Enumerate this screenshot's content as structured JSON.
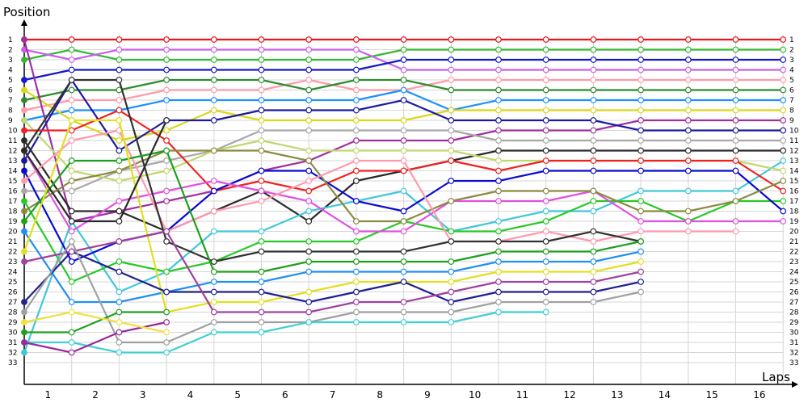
{
  "chart_data": {
    "type": "line",
    "title": "",
    "ylabel": "Position",
    "xlabel": "Laps",
    "x": [
      0,
      1,
      2,
      3,
      4,
      5,
      6,
      7,
      8,
      9,
      10,
      11,
      12,
      13,
      14,
      15,
      16
    ],
    "x_tick_labels": [
      "1",
      "2",
      "3",
      "4",
      "5",
      "6",
      "7",
      "8",
      "9",
      "10",
      "11",
      "12",
      "13",
      "14",
      "15",
      "16"
    ],
    "y_tick_labels": [
      "1",
      "2",
      "3",
      "4",
      "5",
      "6",
      "7",
      "8",
      "9",
      "10",
      "11",
      "12",
      "13",
      "14",
      "15",
      "16",
      "17",
      "18",
      "19",
      "20",
      "21",
      "22",
      "23",
      "24",
      "25",
      "26",
      "27",
      "28",
      "29",
      "30",
      "31",
      "32",
      "33"
    ],
    "ylim": [
      1,
      33
    ],
    "y_inverted": true,
    "grid": true,
    "series": [
      {
        "color": "#e8141e",
        "values": [
          1,
          1,
          1,
          1,
          1,
          1,
          1,
          1,
          1,
          1,
          1,
          1,
          1,
          1,
          1,
          1,
          1
        ]
      },
      {
        "color": "#33b833",
        "values": [
          3,
          2,
          3,
          3,
          3,
          3,
          3,
          3,
          2,
          2,
          2,
          2,
          2,
          2,
          2,
          2,
          2
        ]
      },
      {
        "color": "#c860e8",
        "values": [
          2,
          3,
          2,
          2,
          2,
          2,
          2,
          2,
          4,
          4,
          4,
          4,
          4,
          4,
          4,
          4,
          4
        ]
      },
      {
        "color": "#1818cc",
        "values": [
          5,
          4,
          4,
          4,
          4,
          4,
          4,
          4,
          3,
          3,
          3,
          3,
          3,
          3,
          3,
          3,
          3
        ]
      },
      {
        "color": "#ff9aa8",
        "values": [
          8,
          7,
          7,
          6,
          6,
          6,
          5,
          6,
          6,
          5,
          5,
          5,
          5,
          5,
          5,
          5,
          5
        ]
      },
      {
        "color": "#2e8b2e",
        "values": [
          7,
          6,
          6,
          5,
          5,
          5,
          6,
          5,
          5,
          6,
          6,
          6,
          6,
          6,
          6,
          6,
          6
        ]
      },
      {
        "color": "#1e90ff",
        "values": [
          9,
          8,
          8,
          7,
          7,
          7,
          7,
          7,
          6,
          8,
          7,
          7,
          7,
          7,
          7,
          7,
          7
        ]
      },
      {
        "color": "#d8d818",
        "values": [
          6,
          9,
          11,
          10,
          8,
          9,
          9,
          9,
          9,
          8,
          8,
          8,
          8,
          8,
          8,
          8,
          8
        ]
      },
      {
        "color": "#a030a0",
        "values": [
          1,
          19,
          18,
          17,
          16,
          14,
          13,
          11,
          11,
          11,
          10,
          10,
          10,
          9,
          9,
          9,
          9
        ]
      },
      {
        "color": "#1a1aa0",
        "values": [
          13,
          5,
          12,
          9,
          9,
          8,
          8,
          8,
          7,
          9,
          9,
          9,
          9,
          10,
          10,
          10,
          10
        ]
      },
      {
        "color": "#a8a8a8",
        "values": [
          16,
          16,
          14,
          13,
          12,
          10,
          10,
          10,
          10,
          10,
          11,
          11,
          11,
          11,
          11,
          11,
          11
        ]
      },
      {
        "color": "#2a2a2a",
        "values": [
          11,
          18,
          18,
          20,
          18,
          16,
          19,
          15,
          14,
          13,
          12,
          12,
          12,
          12,
          12,
          12,
          12
        ]
      },
      {
        "color": "#40c8d8",
        "values": [
          32,
          19,
          26,
          24,
          20,
          20,
          18,
          17,
          16,
          20,
          19,
          18,
          18,
          16,
          16,
          16,
          13
        ]
      },
      {
        "color": "#c0d870",
        "values": [
          9,
          14,
          15,
          14,
          12,
          11,
          12,
          12,
          12,
          12,
          13,
          13,
          13,
          13,
          13,
          13,
          14
        ]
      },
      {
        "color": "#ee2222",
        "values": [
          10,
          10,
          8,
          11,
          16,
          15,
          16,
          14,
          14,
          13,
          14,
          13,
          13,
          13,
          13,
          13,
          16
        ]
      },
      {
        "color": "#28c828",
        "values": [
          17,
          25,
          23,
          24,
          23,
          21,
          21,
          21,
          19,
          20,
          20,
          19,
          17,
          17,
          19,
          17,
          17
        ]
      },
      {
        "color": "#0a0ad0",
        "values": [
          14,
          23,
          21,
          20,
          16,
          14,
          14,
          17,
          18,
          15,
          15,
          14,
          14,
          14,
          14,
          14,
          18
        ]
      },
      {
        "color": "#e050e0",
        "values": [
          12,
          20,
          17,
          16,
          15,
          16,
          17,
          20,
          20,
          17,
          17,
          17,
          16,
          19,
          19,
          19,
          19
        ]
      },
      {
        "color": "#8a8a40",
        "values": [
          18,
          15,
          14,
          12,
          12,
          12,
          13,
          19,
          19,
          17,
          16,
          16,
          16,
          18,
          18,
          17,
          15
        ]
      },
      {
        "color": "#ff99b0",
        "values": [
          15,
          11,
          10,
          20,
          18,
          17,
          15,
          13,
          13,
          21,
          21,
          20,
          21,
          20,
          20,
          20,
          null
        ]
      },
      {
        "color": "#333333",
        "values": [
          12,
          5,
          5,
          21,
          23,
          22,
          22,
          22,
          22,
          21,
          21,
          21,
          20,
          21,
          null,
          null,
          null
        ]
      },
      {
        "color": "#1ca01c",
        "values": [
          19,
          13,
          13,
          12,
          24,
          24,
          23,
          23,
          23,
          23,
          22,
          22,
          22,
          21,
          null,
          null,
          null
        ]
      },
      {
        "color": "#2090f0",
        "values": [
          20,
          27,
          27,
          26,
          25,
          25,
          24,
          24,
          24,
          24,
          23,
          23,
          23,
          22,
          null,
          null,
          null
        ]
      },
      {
        "color": "#e0e020",
        "values": [
          22,
          9,
          9,
          28,
          27,
          27,
          26,
          25,
          25,
          25,
          24,
          24,
          24,
          23,
          null,
          null,
          null
        ]
      },
      {
        "color": "#202090",
        "values": [
          27,
          22,
          24,
          26,
          26,
          26,
          27,
          26,
          25,
          27,
          26,
          26,
          26,
          25,
          null,
          null,
          null
        ]
      },
      {
        "color": "#a040a0",
        "values": [
          23,
          22,
          21,
          20,
          28,
          28,
          28,
          27,
          27,
          26,
          25,
          25,
          25,
          24,
          null,
          null,
          null
        ]
      },
      {
        "color": "#a0a0a0",
        "values": [
          28,
          21,
          31,
          31,
          29,
          29,
          29,
          28,
          28,
          28,
          27,
          27,
          27,
          26,
          null,
          null,
          null
        ]
      },
      {
        "color": "#40d0d0",
        "values": [
          31,
          31,
          32,
          32,
          30,
          30,
          29,
          29,
          29,
          29,
          28,
          28,
          null,
          null,
          null,
          null,
          null
        ]
      },
      {
        "color": "#20a020",
        "values": [
          30,
          30,
          28,
          28,
          null,
          null,
          null,
          null,
          null,
          null,
          null,
          null,
          null,
          null,
          null,
          null,
          null
        ]
      },
      {
        "color": "#9a2a9a",
        "values": [
          31,
          32,
          30,
          29,
          null,
          null,
          null,
          null,
          null,
          null,
          null,
          null,
          null,
          null,
          null,
          null,
          null
        ]
      },
      {
        "color": "#f0e040",
        "values": [
          29,
          28,
          29,
          30,
          null,
          null,
          null,
          null,
          null,
          null,
          null,
          null,
          null,
          null,
          null,
          null,
          null
        ]
      },
      {
        "color": "#2a2a2a",
        "values": [
          12,
          19,
          19,
          9,
          null,
          null,
          null,
          null,
          null,
          null,
          null,
          null,
          null,
          null,
          null,
          null,
          null
        ]
      }
    ]
  }
}
